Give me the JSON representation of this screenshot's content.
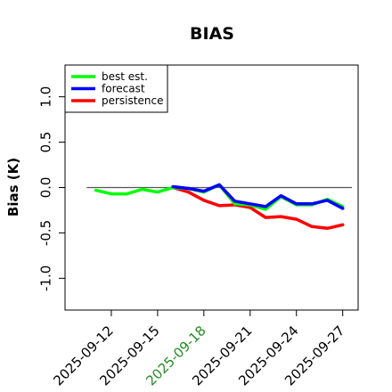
{
  "chart_data": {
    "type": "line",
    "title": "BIAS",
    "xlabel": "",
    "ylabel": "Bias (K)",
    "ylim": [
      -1.35,
      1.35
    ],
    "yticks": [
      "1.0",
      "0.5",
      "0.0",
      "-0.5",
      "-1.0"
    ],
    "ytick_values": [
      1.0,
      0.5,
      0.0,
      -0.5,
      -1.0
    ],
    "x_start": "2025-09-11",
    "x": [
      "2025-09-11",
      "2025-09-12",
      "2025-09-13",
      "2025-09-14",
      "2025-09-15",
      "2025-09-16",
      "2025-09-17",
      "2025-09-18",
      "2025-09-19",
      "2025-09-20",
      "2025-09-21",
      "2025-09-22",
      "2025-09-23",
      "2025-09-24",
      "2025-09-25",
      "2025-09-26",
      "2025-09-27"
    ],
    "xlim": [
      "2025-09-09",
      "2025-09-28"
    ],
    "xticks": [
      "2025-09-12",
      "2025-09-15",
      "2025-09-18",
      "2025-09-21",
      "2025-09-24",
      "2025-09-27"
    ],
    "xtick_colors": [
      "#000000",
      "#000000",
      "#228B22",
      "#000000",
      "#000000",
      "#000000"
    ],
    "zero_line": 0.0,
    "legend_position": "top-left",
    "series": [
      {
        "name": "best est.",
        "color": "#00ff00",
        "values": [
          -0.03,
          -0.07,
          -0.07,
          -0.02,
          -0.05,
          0.0,
          -0.01,
          -0.05,
          0.03,
          -0.18,
          -0.19,
          -0.24,
          -0.1,
          -0.19,
          -0.19,
          -0.13,
          -0.21
        ]
      },
      {
        "name": "forecast",
        "color": "#0000ff",
        "values": [
          null,
          null,
          null,
          null,
          null,
          0.01,
          -0.01,
          -0.04,
          0.03,
          -0.15,
          -0.18,
          -0.21,
          -0.09,
          -0.18,
          -0.18,
          -0.14,
          -0.23
        ]
      },
      {
        "name": "persistence",
        "color": "#ff0000",
        "values": [
          null,
          null,
          null,
          null,
          null,
          0.0,
          -0.05,
          -0.14,
          -0.2,
          -0.19,
          -0.22,
          -0.33,
          -0.32,
          -0.35,
          -0.43,
          -0.45,
          -0.41
        ]
      }
    ],
    "axis_color": "#000000",
    "zero_line_color": "#555555"
  }
}
